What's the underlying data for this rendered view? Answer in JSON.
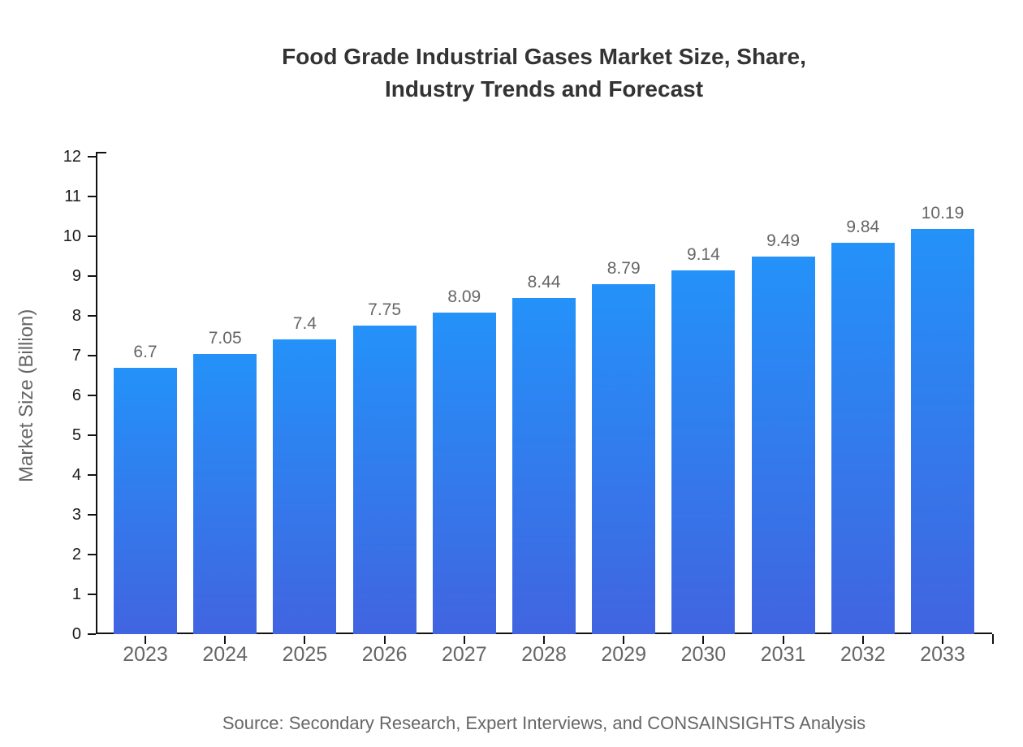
{
  "title": {
    "line1": "Food Grade Industrial Gases Market Size, Share,",
    "line2": "Industry Trends and Forecast"
  },
  "source": "Source: Secondary Research, Expert Interviews, and CONSAINSIGHTS Analysis",
  "colors": {
    "bar_gradient_top": "#2492f9",
    "bar_gradient_bottom": "#4164e0",
    "axis": "#111111",
    "title_text": "#333333",
    "axis_text": "#666666",
    "y_tick_text": "#1a1a1a"
  },
  "chart_data": {
    "type": "bar",
    "title": "Food Grade Industrial Gases Market Size, Share, Industry Trends and Forecast",
    "categories": [
      "2023",
      "2024",
      "2025",
      "2026",
      "2027",
      "2028",
      "2029",
      "2030",
      "2031",
      "2032",
      "2033"
    ],
    "values": [
      6.7,
      7.05,
      7.4,
      7.75,
      8.09,
      8.44,
      8.79,
      9.14,
      9.49,
      9.84,
      10.19
    ],
    "value_labels": [
      "6.7",
      "7.05",
      "7.4",
      "7.75",
      "8.09",
      "8.44",
      "8.79",
      "9.14",
      "9.49",
      "9.84",
      "10.19"
    ],
    "xlabel": "",
    "ylabel": "Market Size (Billion)",
    "ylim": [
      0,
      12
    ],
    "ytick_step": 1,
    "grid": false,
    "legend": false
  }
}
